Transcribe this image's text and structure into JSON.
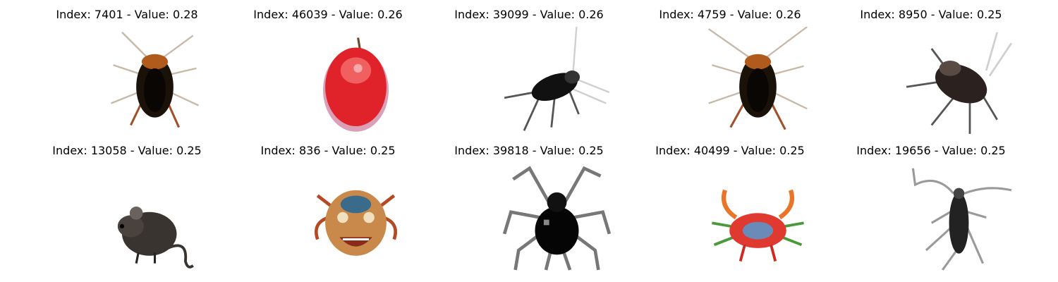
{
  "images": [
    {
      "title": "Index: 7401 - Value: 0.28",
      "subject": "cockroach",
      "colors": {
        "body": "#1a1208",
        "accent": "#b05a1c"
      }
    },
    {
      "title": "Index: 46039 - Value: 0.26",
      "subject": "apple",
      "colors": {
        "body": "#e0232b",
        "accent": "#f06060"
      }
    },
    {
      "title": "Index: 39099 - Value: 0.26",
      "subject": "beetle",
      "colors": {
        "body": "#111111",
        "accent": "#777777"
      }
    },
    {
      "title": "Index: 4759 - Value: 0.26",
      "subject": "cockroach",
      "colors": {
        "body": "#1a1208",
        "accent": "#b05a1c"
      }
    },
    {
      "title": "Index: 8950 - Value: 0.25",
      "subject": "cockroach",
      "colors": {
        "body": "#2b2220",
        "accent": "#5a4a44"
      }
    },
    {
      "title": "Index: 13058 - Value: 0.25",
      "subject": "mouse",
      "colors": {
        "body": "#3a3430",
        "accent": "#6a625c"
      }
    },
    {
      "title": "Index: 836 - Value: 0.25",
      "subject": "crab-face",
      "colors": {
        "body": "#b34a24",
        "accent": "#3b6b8a"
      }
    },
    {
      "title": "Index: 39818 - Value: 0.25",
      "subject": "spider",
      "colors": {
        "body": "#050505",
        "accent": "#666666"
      }
    },
    {
      "title": "Index: 40499 - Value: 0.25",
      "subject": "crab",
      "colors": {
        "body": "#e03a30",
        "accent": "#3a8a3a"
      }
    },
    {
      "title": "Index: 19656 - Value: 0.25",
      "subject": "longhorn-beetle",
      "colors": {
        "body": "#222222",
        "accent": "#888888"
      }
    }
  ]
}
